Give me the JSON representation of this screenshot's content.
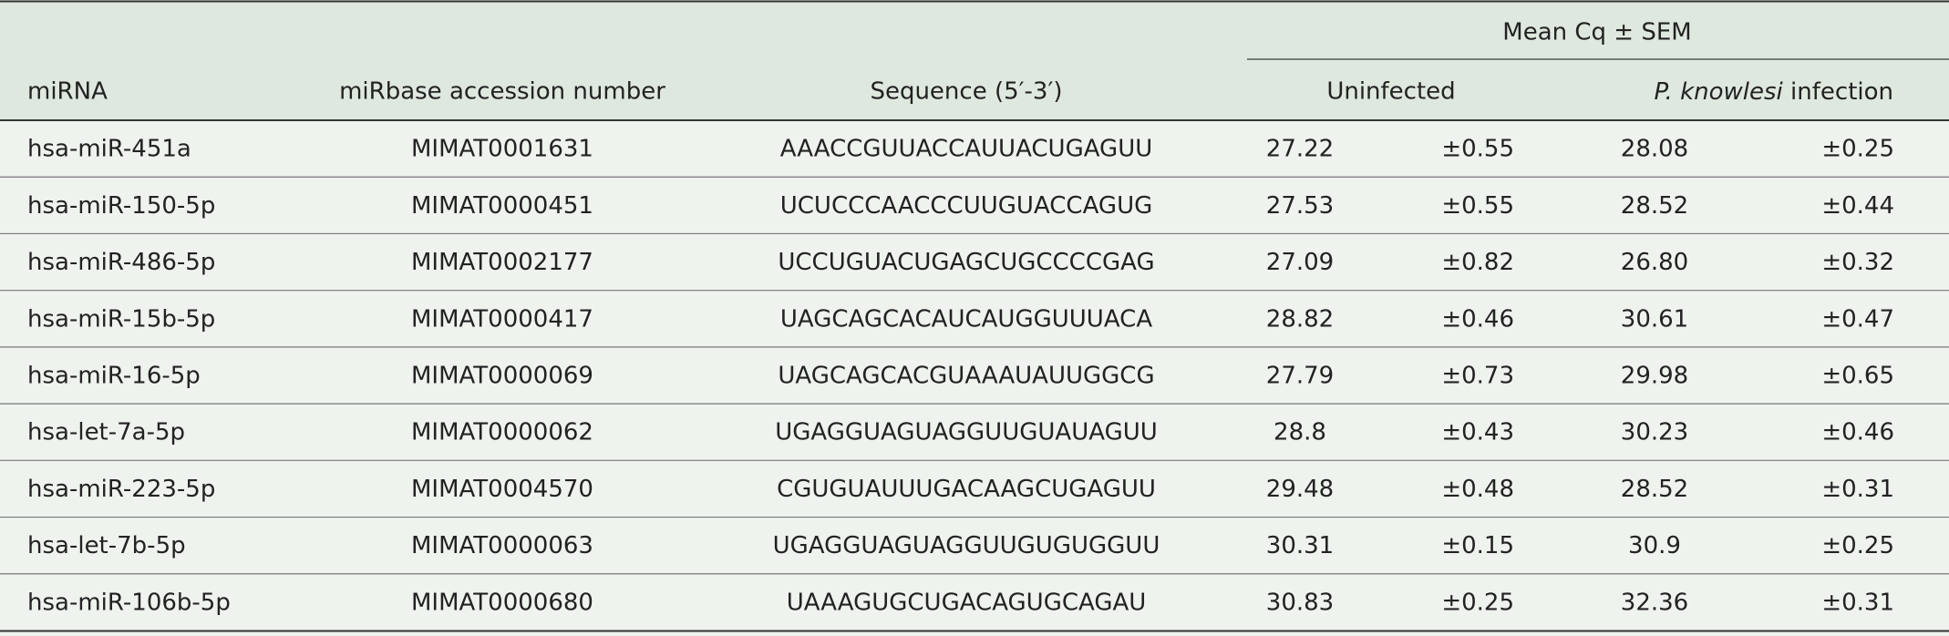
{
  "table": {
    "group_header": "Mean Cq ± SEM",
    "columns": [
      "miRNA",
      "miRbase accession number",
      "Sequence (5′-3′)",
      "Uninfected",
      {
        "italic": "P. knowlesi",
        "rest": " infection"
      }
    ],
    "rows": [
      [
        "hsa-miR-451a",
        "MIMAT0001631",
        "AAACCGUUACCAUUACUGAGUU",
        "27.22",
        "±0.55",
        "28.08",
        "±0.25"
      ],
      [
        "hsa-miR-150-5p",
        "MIMAT0000451",
        "UCUCCCAACCCUUGUACCAGUG",
        "27.53",
        "±0.55",
        "28.52",
        "±0.44"
      ],
      [
        "hsa-miR-486-5p",
        "MIMAT0002177",
        "UCCUGUACUGAGCUGCCCCGAG",
        "27.09",
        "±0.82",
        "26.80",
        "±0.32"
      ],
      [
        "hsa-miR-15b-5p",
        "MIMAT0000417",
        "UAGCAGCACAUCAUGGUUUACA",
        "28.82",
        "±0.46",
        "30.61",
        "±0.47"
      ],
      [
        "hsa-miR-16-5p",
        "MIMAT0000069",
        "UAGCAGCACGUAAAUAUUGGCG",
        "27.79",
        "±0.73",
        "29.98",
        "±0.65"
      ],
      [
        "hsa-let-7a-5p",
        "MIMAT0000062",
        "UGAGGUAGUAGGUUGUAUAGUU",
        "28.8",
        "±0.43",
        "30.23",
        "±0.46"
      ],
      [
        "hsa-miR-223-5p",
        "MIMAT0004570",
        "CGUGUAUUUGACAAGCUGAGUU",
        "29.48",
        "±0.48",
        "28.52",
        "±0.31"
      ],
      [
        "hsa-let-7b-5p",
        "MIMAT0000063",
        "UGAGGUAGUAGGUUGUGUGGUU",
        "30.31",
        "±0.15",
        "30.9",
        "±0.25"
      ],
      [
        "hsa-miR-106b-5p",
        "MIMAT0000680",
        "UAAAGUGCUGACAGUGCAGAU",
        "30.83",
        "±0.25",
        "32.36",
        "±0.31"
      ]
    ]
  }
}
